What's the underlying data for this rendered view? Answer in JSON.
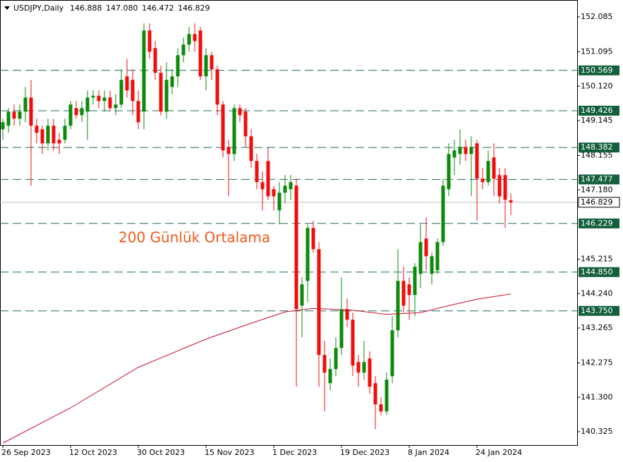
{
  "chart_data": {
    "type": "candlestick",
    "header": {
      "symbol": "USDJPY,Daily",
      "ohlc": [
        "146.888",
        "147.080",
        "146.472",
        "146.829"
      ]
    },
    "annotation": "200 Günlük Ortalama",
    "categories": [
      "26 Sep 2023",
      null,
      null,
      null,
      null,
      null,
      null,
      null,
      null,
      null,
      null,
      null,
      "12 Oct 2023",
      null,
      null,
      null,
      null,
      null,
      null,
      null,
      null,
      null,
      null,
      null,
      "30 Oct 2023",
      null,
      null,
      null,
      null,
      null,
      null,
      null,
      null,
      null,
      null,
      null,
      "15 Nov 2023",
      null,
      null,
      null,
      null,
      null,
      null,
      null,
      null,
      null,
      null,
      null,
      "1 Dec 2023",
      null,
      null,
      null,
      null,
      null,
      null,
      null,
      null,
      null,
      null,
      null,
      "19 Dec 2023",
      null,
      null,
      null,
      null,
      null,
      null,
      null,
      null,
      null,
      null,
      null,
      "8 Jan 2024",
      null,
      null,
      null,
      null,
      null,
      null,
      null,
      null,
      null,
      null,
      null,
      "24 Jan 2024",
      null,
      null,
      null,
      null,
      null,
      null
    ],
    "open": [
      148.9,
      149.0,
      149.4,
      149.2,
      149.4,
      149.8,
      149.0,
      148.9,
      148.5,
      149.0,
      148.6,
      148.6,
      149.0,
      149.5,
      149.3,
      149.4,
      149.8,
      149.85,
      149.7,
      149.8,
      149.5,
      149.6,
      150.4,
      150.3,
      149.7,
      149.4,
      151.7,
      151.2,
      150.5,
      149.4,
      150.1,
      150.4,
      151.0,
      151.3,
      151.6,
      151.7,
      150.4,
      151.0,
      150.6,
      149.6,
      148.4,
      148.2,
      149.5,
      149.4,
      148.7,
      148.0,
      147.4,
      148.0,
      147.2,
      146.6,
      147.1,
      147.2,
      147.3,
      143.9,
      144.6,
      146.1,
      145.5,
      142.5,
      141.7,
      142.1,
      142.7,
      143.8,
      143.5,
      142.3,
      142.0,
      142.4,
      141.7,
      141.1,
      140.9,
      141.9,
      143.2,
      144.6,
      144.5,
      144.2,
      144.8,
      145.8,
      144.8,
      144.9,
      145.7,
      147.2,
      148.1,
      148.2,
      148.4,
      148.2,
      148.5,
      147.5,
      147.4,
      148.1,
      147.6,
      147.6,
      146.888
    ],
    "high": [
      149.2,
      149.5,
      149.6,
      149.6,
      150.1,
      150.3,
      149.2,
      149.0,
      149.2,
      149.2,
      148.8,
      149.2,
      149.7,
      149.7,
      149.7,
      150.0,
      150.0,
      150.0,
      150.0,
      150.0,
      149.9,
      150.6,
      150.9,
      150.6,
      150.0,
      151.9,
      151.9,
      151.4,
      150.7,
      150.8,
      150.6,
      151.2,
      151.5,
      151.8,
      151.9,
      151.8,
      151.2,
      151.1,
      150.7,
      149.7,
      148.6,
      149.6,
      149.6,
      149.5,
      148.9,
      148.2,
      147.7,
      148.4,
      147.3,
      147.4,
      147.6,
      147.6,
      147.5,
      144.7,
      146.2,
      146.3,
      145.7,
      142.9,
      142.4,
      143.0,
      144.7,
      144.1,
      143.7,
      142.5,
      142.9,
      142.6,
      141.9,
      141.3,
      142.0,
      143.6,
      145.5,
      145.0,
      144.7,
      145.1,
      146.2,
      146.4,
      145.4,
      145.8,
      147.5,
      148.5,
      148.6,
      148.9,
      148.6,
      148.7,
      148.6,
      147.8,
      148.3,
      148.5,
      147.8,
      147.8,
      147.08
    ],
    "low": [
      148.6,
      148.8,
      149.0,
      149.0,
      149.1,
      147.3,
      148.5,
      148.2,
      148.3,
      148.3,
      148.2,
      148.5,
      148.9,
      149.2,
      149.1,
      148.6,
      149.6,
      149.5,
      149.4,
      149.4,
      149.3,
      149.5,
      149.8,
      149.3,
      148.9,
      148.9,
      150.9,
      150.3,
      149.3,
      149.2,
      149.9,
      150.1,
      150.8,
      151.1,
      151.1,
      150.3,
      150.0,
      150.3,
      149.3,
      148.1,
      147.0,
      148.0,
      149.1,
      148.4,
      147.8,
      147.2,
      146.6,
      146.9,
      146.6,
      146.2,
      146.8,
      146.9,
      141.6,
      143.0,
      144.0,
      145.4,
      141.6,
      140.9,
      141.5,
      141.9,
      142.5,
      143.3,
      141.9,
      141.6,
      141.8,
      141.4,
      140.4,
      140.8,
      140.8,
      141.7,
      143.0,
      143.7,
      143.5,
      143.6,
      144.4,
      144.9,
      144.5,
      144.8,
      145.6,
      147.0,
      147.6,
      147.9,
      148.0,
      147.0,
      146.3,
      147.2,
      147.3,
      147.0,
      146.8,
      146.1,
      146.472
    ],
    "close": [
      149.1,
      149.4,
      149.2,
      149.4,
      149.8,
      149.0,
      148.8,
      148.5,
      149.0,
      148.5,
      148.5,
      149.0,
      149.6,
      149.3,
      149.5,
      149.8,
      149.85,
      149.7,
      149.8,
      149.5,
      149.6,
      150.3,
      150.0,
      149.7,
      149.1,
      151.7,
      151.1,
      150.5,
      149.4,
      150.3,
      150.4,
      151.0,
      151.3,
      151.6,
      151.4,
      150.4,
      151.0,
      150.6,
      149.6,
      148.3,
      148.2,
      149.5,
      149.3,
      148.7,
      148.0,
      147.4,
      147.2,
      147.0,
      147.0,
      147.1,
      147.3,
      147.4,
      143.8,
      144.5,
      146.1,
      145.5,
      142.5,
      142.0,
      142.1,
      142.7,
      143.8,
      143.5,
      142.2,
      142.0,
      142.3,
      141.6,
      141.1,
      140.9,
      141.8,
      143.2,
      144.6,
      143.9,
      144.2,
      145.0,
      145.7,
      145.3,
      145.3,
      145.7,
      147.3,
      148.2,
      148.3,
      148.4,
      148.2,
      148.4,
      147.5,
      147.4,
      148.0,
      147.5,
      147.0,
      146.9,
      146.829
    ],
    "up_color": "#0b8a0b",
    "down_color": "#f20d0d",
    "moving_average": {
      "color": "#c8102e",
      "x": [
        0,
        12,
        24,
        36,
        44,
        50,
        55,
        62,
        68,
        74,
        79,
        84,
        90
      ],
      "values": [
        140.0,
        141.0,
        142.15,
        142.95,
        143.4,
        143.72,
        143.82,
        143.77,
        143.65,
        143.7,
        143.9,
        144.08,
        144.23
      ]
    },
    "levels": {
      "color": "#1f6b60",
      "label_color": "#14603c",
      "values": [
        150.569,
        149.426,
        148.382,
        147.477,
        146.229,
        144.85,
        143.75
      ],
      "value_labels": [
        "150.569",
        "149.426",
        "148.382",
        "147.477",
        "146.229",
        "144.850",
        "143.750"
      ]
    },
    "current_price": 146.829,
    "ylim": [
      139.945,
      152.565
    ],
    "yticks": [
      152.085,
      151.095,
      {
        "value": 150.12,
        "label": "150.120"
      },
      149.145,
      148.155,
      {
        "value": 147.18,
        "label": "147.180"
      },
      145.215,
      {
        "value": 144.24,
        "label": "144.240"
      },
      143.265,
      142.275,
      {
        "value": 141.3,
        "label": "141.300"
      },
      140.325
    ]
  }
}
